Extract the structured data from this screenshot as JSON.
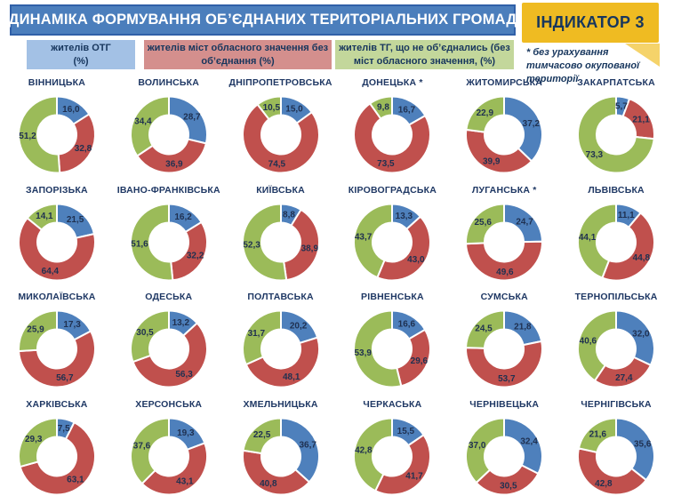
{
  "header": {
    "title": "ДИНАМІКА ФОРМУВАННЯ ОБ’ЄДНАНИХ ТЕРИТОРІАЛЬНИХ ГРОМАД",
    "indicator_label": "ІНДИКАТОР 3",
    "footnote": "* без урахування тимчасово окупованої території"
  },
  "colors": {
    "title_bar": "#4B7EBC",
    "title_bar_border": "#3060A8",
    "indicator_bg": "#EFBB22",
    "indicator_fold": "#F5D36A",
    "text_navy": "#17365D"
  },
  "legend": {
    "items": [
      {
        "key": "otg",
        "line1": "жителів  ОТГ",
        "line2": "(%)",
        "color": "#A3C1E5"
      },
      {
        "key": "cities",
        "line1": "жителів міст обласного значення без",
        "line2": "об’єднання (%)",
        "color": "#D48F8D"
      },
      {
        "key": "not_united",
        "line1": "жителів ТГ, що не об’єднались (без",
        "line2": "міст обласного значення, (%)",
        "color": "#C3D79B"
      }
    ]
  },
  "chart_data": {
    "type": "pie",
    "subtype": "donut-small-multiples",
    "unit": "%",
    "decimal_separator": ",",
    "slice_order": [
      "otg",
      "cities",
      "not_united"
    ],
    "colors": {
      "otg": "#4E80BC",
      "cities": "#C0504D",
      "not_united": "#9BBB59"
    },
    "series_legend": [
      "жителів ОТГ (%)",
      "жителів міст обласного значення без об’єднання (%)",
      "жителів ТГ, що не об’єднались (без міст обласного значення, (%)"
    ],
    "charts": [
      {
        "region": "ВІННИЦЬКА",
        "otg": 16.0,
        "cities": 32.8,
        "not_united": 51.2
      },
      {
        "region": "ВОЛИНСЬКА",
        "otg": 28.7,
        "cities": 36.9,
        "not_united": 34.4
      },
      {
        "region": "ДНІПРОПЕТРОВСЬКА",
        "otg": 15.0,
        "cities": 74.5,
        "not_united": 10.5
      },
      {
        "region": "ДОНЕЦЬКА *",
        "otg": 16.7,
        "cities": 73.5,
        "not_united": 9.8
      },
      {
        "region": "ЖИТОМИРСЬКА",
        "otg": 37.2,
        "cities": 39.9,
        "not_united": 22.9
      },
      {
        "region": "ЗАКАРПАТСЬКА",
        "otg": 5.7,
        "cities": 21.1,
        "not_united": 73.3
      },
      {
        "region": "ЗАПОРІЗЬКА",
        "otg": 21.5,
        "cities": 64.4,
        "not_united": 14.1
      },
      {
        "region": "ІВАНО-ФРАНКІВСЬКА",
        "otg": 16.2,
        "cities": 32.2,
        "not_united": 51.6
      },
      {
        "region": "КИЇВСЬКА",
        "otg": 8.8,
        "cities": 38.9,
        "not_united": 52.3
      },
      {
        "region": "КІРОВОГРАДСЬКА",
        "otg": 13.3,
        "cities": 43.0,
        "not_united": 43.7
      },
      {
        "region": "ЛУГАНСЬКА *",
        "otg": 24.7,
        "cities": 49.6,
        "not_united": 25.6
      },
      {
        "region": "ЛЬВІВСЬКА",
        "otg": 11.1,
        "cities": 44.8,
        "not_united": 44.1
      },
      {
        "region": "МИКОЛАЇВСЬКА",
        "otg": 17.3,
        "cities": 56.7,
        "not_united": 25.9
      },
      {
        "region": "ОДЕСЬКА",
        "otg": 13.2,
        "cities": 56.3,
        "not_united": 30.5
      },
      {
        "region": "ПОЛТАВСЬКА",
        "otg": 20.2,
        "cities": 48.1,
        "not_united": 31.7
      },
      {
        "region": "РІВНЕНСЬКА",
        "otg": 16.6,
        "cities": 29.6,
        "not_united": 53.9
      },
      {
        "region": "СУМСЬКА",
        "otg": 21.8,
        "cities": 53.7,
        "not_united": 24.5
      },
      {
        "region": "ТЕРНОПІЛЬСЬКА",
        "otg": 32.0,
        "cities": 27.4,
        "not_united": 40.6
      },
      {
        "region": "ХАРКІВСЬКА",
        "otg": 7.5,
        "cities": 63.1,
        "not_united": 29.3
      },
      {
        "region": "ХЕРСОНСЬКА",
        "otg": 19.3,
        "cities": 43.1,
        "not_united": 37.6
      },
      {
        "region": "ХМЕЛЬНИЦЬКА",
        "otg": 36.7,
        "cities": 40.8,
        "not_united": 22.5
      },
      {
        "region": "ЧЕРКАСЬКА",
        "otg": 15.5,
        "cities": 41.7,
        "not_united": 42.8
      },
      {
        "region": "ЧЕРНІВЕЦЬКА",
        "otg": 32.4,
        "cities": 30.5,
        "not_united": 37.0
      },
      {
        "region": "ЧЕРНІГІВСЬКА",
        "otg": 35.6,
        "cities": 42.8,
        "not_united": 21.6
      }
    ]
  }
}
